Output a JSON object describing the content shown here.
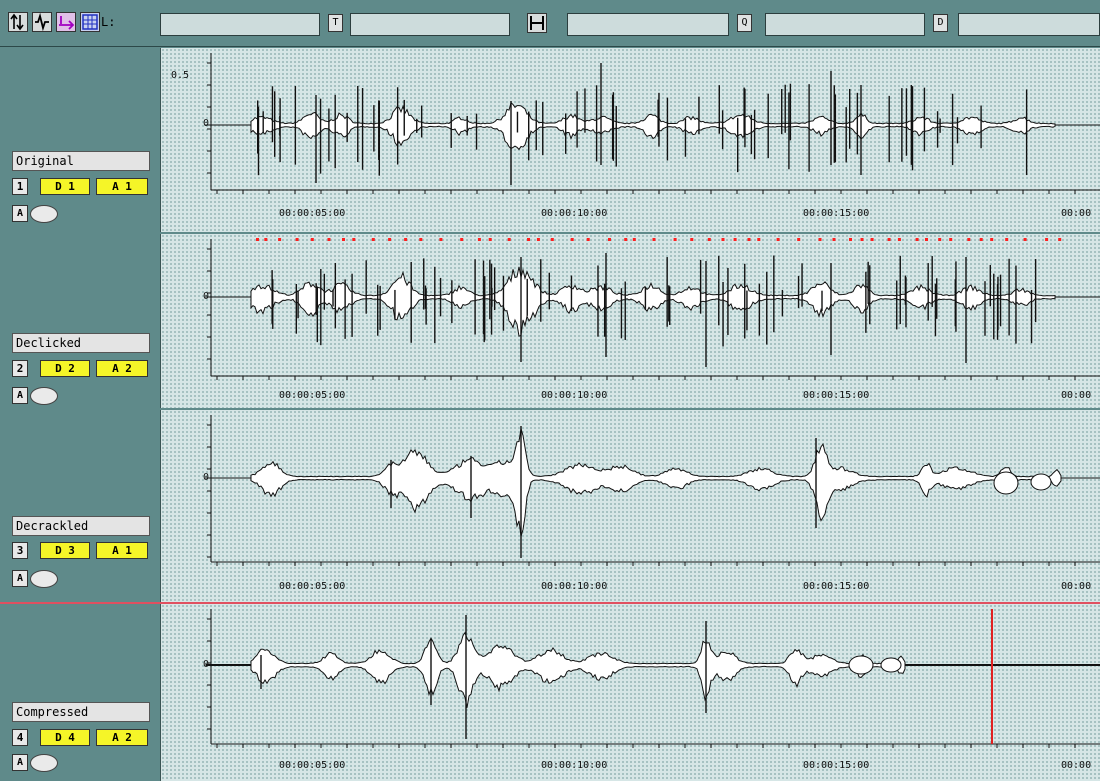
{
  "toolbar": {
    "icons": [
      "split-icon",
      "waveform-tool-icon",
      "arrows-icon",
      "grid-select-icon"
    ],
    "field_l_label": "L:",
    "field_l_value": "",
    "field_t_label": "T",
    "field_t_value": "",
    "field_h_value": "",
    "field_q_label": "Q",
    "field_q_value": "",
    "field_d_label": "D",
    "field_d_value": ""
  },
  "tracks": [
    {
      "name": "Original",
      "number": "1",
      "tag1": "D 1",
      "tag2": "A 1",
      "a_btn": "A",
      "ymax": "0.5",
      "zero": "0",
      "timecodes": [
        "00:00:05:00",
        "00:00:10:00",
        "00:00:15:00",
        "00:00"
      ]
    },
    {
      "name": "Declicked",
      "number": "2",
      "tag1": "D 2",
      "tag2": "A 2",
      "a_btn": "A",
      "zero": "0",
      "timecodes": [
        "00:00:05:00",
        "00:00:10:00",
        "00:00:15:00",
        "00:00"
      ]
    },
    {
      "name": "Decrackled",
      "number": "3",
      "tag1": "D 3",
      "tag2": "A 1",
      "a_btn": "A",
      "zero": "0",
      "timecodes": [
        "00:00:05:00",
        "00:00:10:00",
        "00:00:15:00",
        "00:00"
      ]
    },
    {
      "name": "Compressed",
      "number": "4",
      "tag1": "D 4",
      "tag2": "A 2",
      "a_btn": "A",
      "zero": "0",
      "timecodes": [
        "00:00:05:00",
        "00:00:10:00",
        "00:00:15:00",
        "00:00"
      ]
    }
  ],
  "colors": {
    "panel": "#5f8a8a",
    "wave_bg": "#d6e6e6",
    "tag_yellow": "#f5f528",
    "click_marker": "#ff2020",
    "playhead": "#e02020",
    "selected_border": "#e05060"
  }
}
